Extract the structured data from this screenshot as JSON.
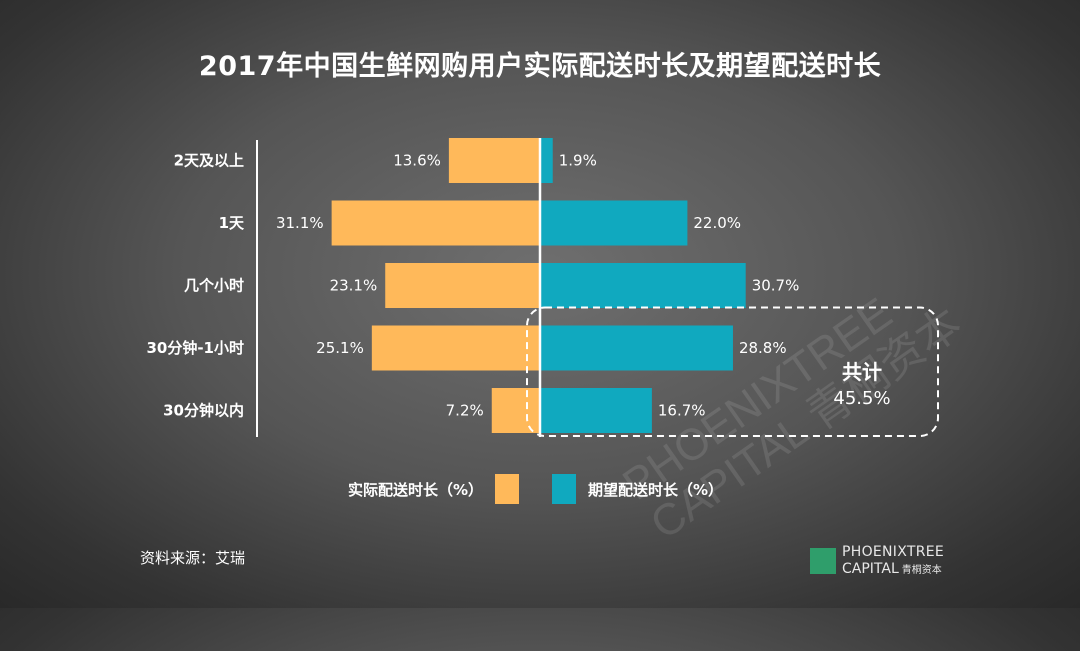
{
  "title": "2017年中国生鲜网购用户实际配送时长及期望配送时长",
  "chart_data": {
    "type": "bar",
    "orientation": "horizontal-diverging",
    "categories": [
      "2天及以上",
      "1天",
      "几个小时",
      "30分钟-1小时",
      "30分钟以内"
    ],
    "series": [
      {
        "name": "实际配送时长（%）",
        "values": [
          13.6,
          31.1,
          23.1,
          25.1,
          7.2
        ],
        "labels": [
          "13.6%",
          "31.1%",
          "23.1%",
          "25.1%",
          "7.2%"
        ],
        "color": "#FFB95A"
      },
      {
        "name": "期望配送时长（%）",
        "values": [
          1.9,
          22.0,
          30.7,
          28.8,
          16.7
        ],
        "labels": [
          "1.9%",
          "22.0%",
          "30.7%",
          "28.8%",
          "16.7%"
        ],
        "color": "#10A9BF"
      }
    ],
    "annotation": {
      "title": "共计",
      "value": "45.5%"
    }
  },
  "legend": {
    "actual": "实际配送时长（%）",
    "expected": "期望配送时长（%）"
  },
  "source": "资料来源：艾瑞",
  "logo": {
    "line1": "PHOENIXTREE",
    "line2": "CAPITAL",
    "cn": "青桐资本"
  },
  "watermark": {
    "line1": "PHOENIXTREE",
    "line2": "CAPITAL 青桐资本"
  }
}
